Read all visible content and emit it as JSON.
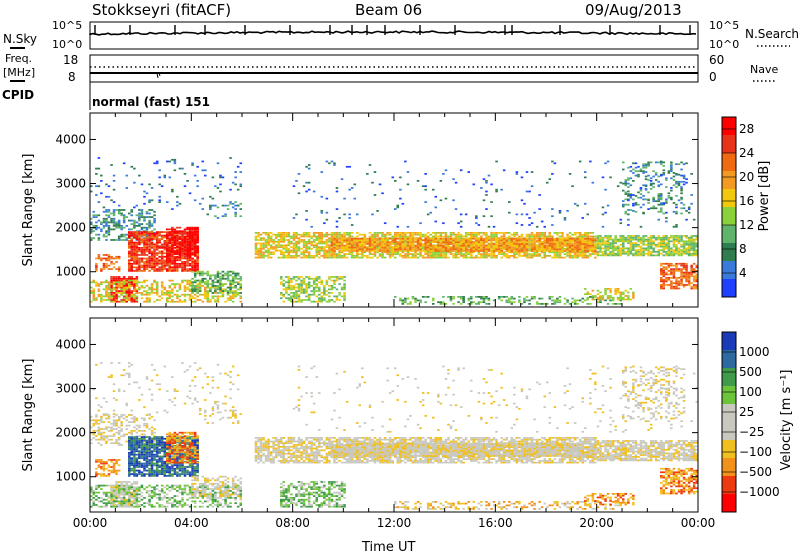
{
  "header": {
    "station": "Stokkseyri (fitACF)",
    "beam": "Beam 06",
    "date": "09/Aug/2013"
  },
  "colors": {
    "power_scale": [
      "#2040ff",
      "#3a7ad8",
      "#2f7d4e",
      "#5fb36a",
      "#8ad13a",
      "#f2c80f",
      "#f39a22",
      "#f06a12",
      "#e8321a",
      "#ff0000"
    ],
    "velocity_scale": [
      "#ff0000",
      "#ee3a10",
      "#f2921a",
      "#f0c020",
      "#c8c8c0",
      "#c8c8c0",
      "#6cc43a",
      "#3f9a4a",
      "#2c6aa0",
      "#1b3ab8"
    ]
  },
  "chart_data": [
    {
      "type": "line",
      "panel": "nsky",
      "ylabel": "N.Sky",
      "ylabel_right": "N.Search",
      "ytick_labels": [
        "10^5",
        "10^0"
      ],
      "ytick_labels_right": [
        "10^5",
        "10^0"
      ]
    },
    {
      "type": "line",
      "panel": "freq",
      "ylabel": "Freq. [MHz]",
      "ylabel_right": "Nave",
      "ytick_labels": [
        "18",
        "8"
      ],
      "ytick_labels_right": [
        "60",
        "0"
      ]
    },
    {
      "type": "table",
      "panel": "cpid",
      "label": "CPID",
      "value": "normal (fast) 151"
    },
    {
      "type": "heatmap",
      "panel": "power",
      "ylabel": "Slant Range [km]",
      "yticks": [
        1000,
        2000,
        3000,
        4000
      ],
      "ylim": [
        200,
        4600
      ],
      "colorbar_label": "Power [dB]",
      "colorbar_ticks": [
        4,
        8,
        12,
        16,
        20,
        24,
        28
      ],
      "colorbar_range": [
        0,
        30
      ]
    },
    {
      "type": "heatmap",
      "panel": "velocity",
      "ylabel": "Slant Range [km]",
      "yticks": [
        1000,
        2000,
        3000,
        4000
      ],
      "ylim": [
        200,
        4600
      ],
      "xlabel": "Time UT",
      "xtick_labels": [
        "00:00",
        "04:00",
        "08:00",
        "12:00",
        "16:00",
        "20:00",
        "00:00"
      ],
      "colorbar_label": "Velocity [m s⁻¹]",
      "colorbar_ticks": [
        "1000",
        "500",
        "100",
        "25",
        "−25",
        "−100",
        "−500",
        "−1000"
      ]
    }
  ]
}
